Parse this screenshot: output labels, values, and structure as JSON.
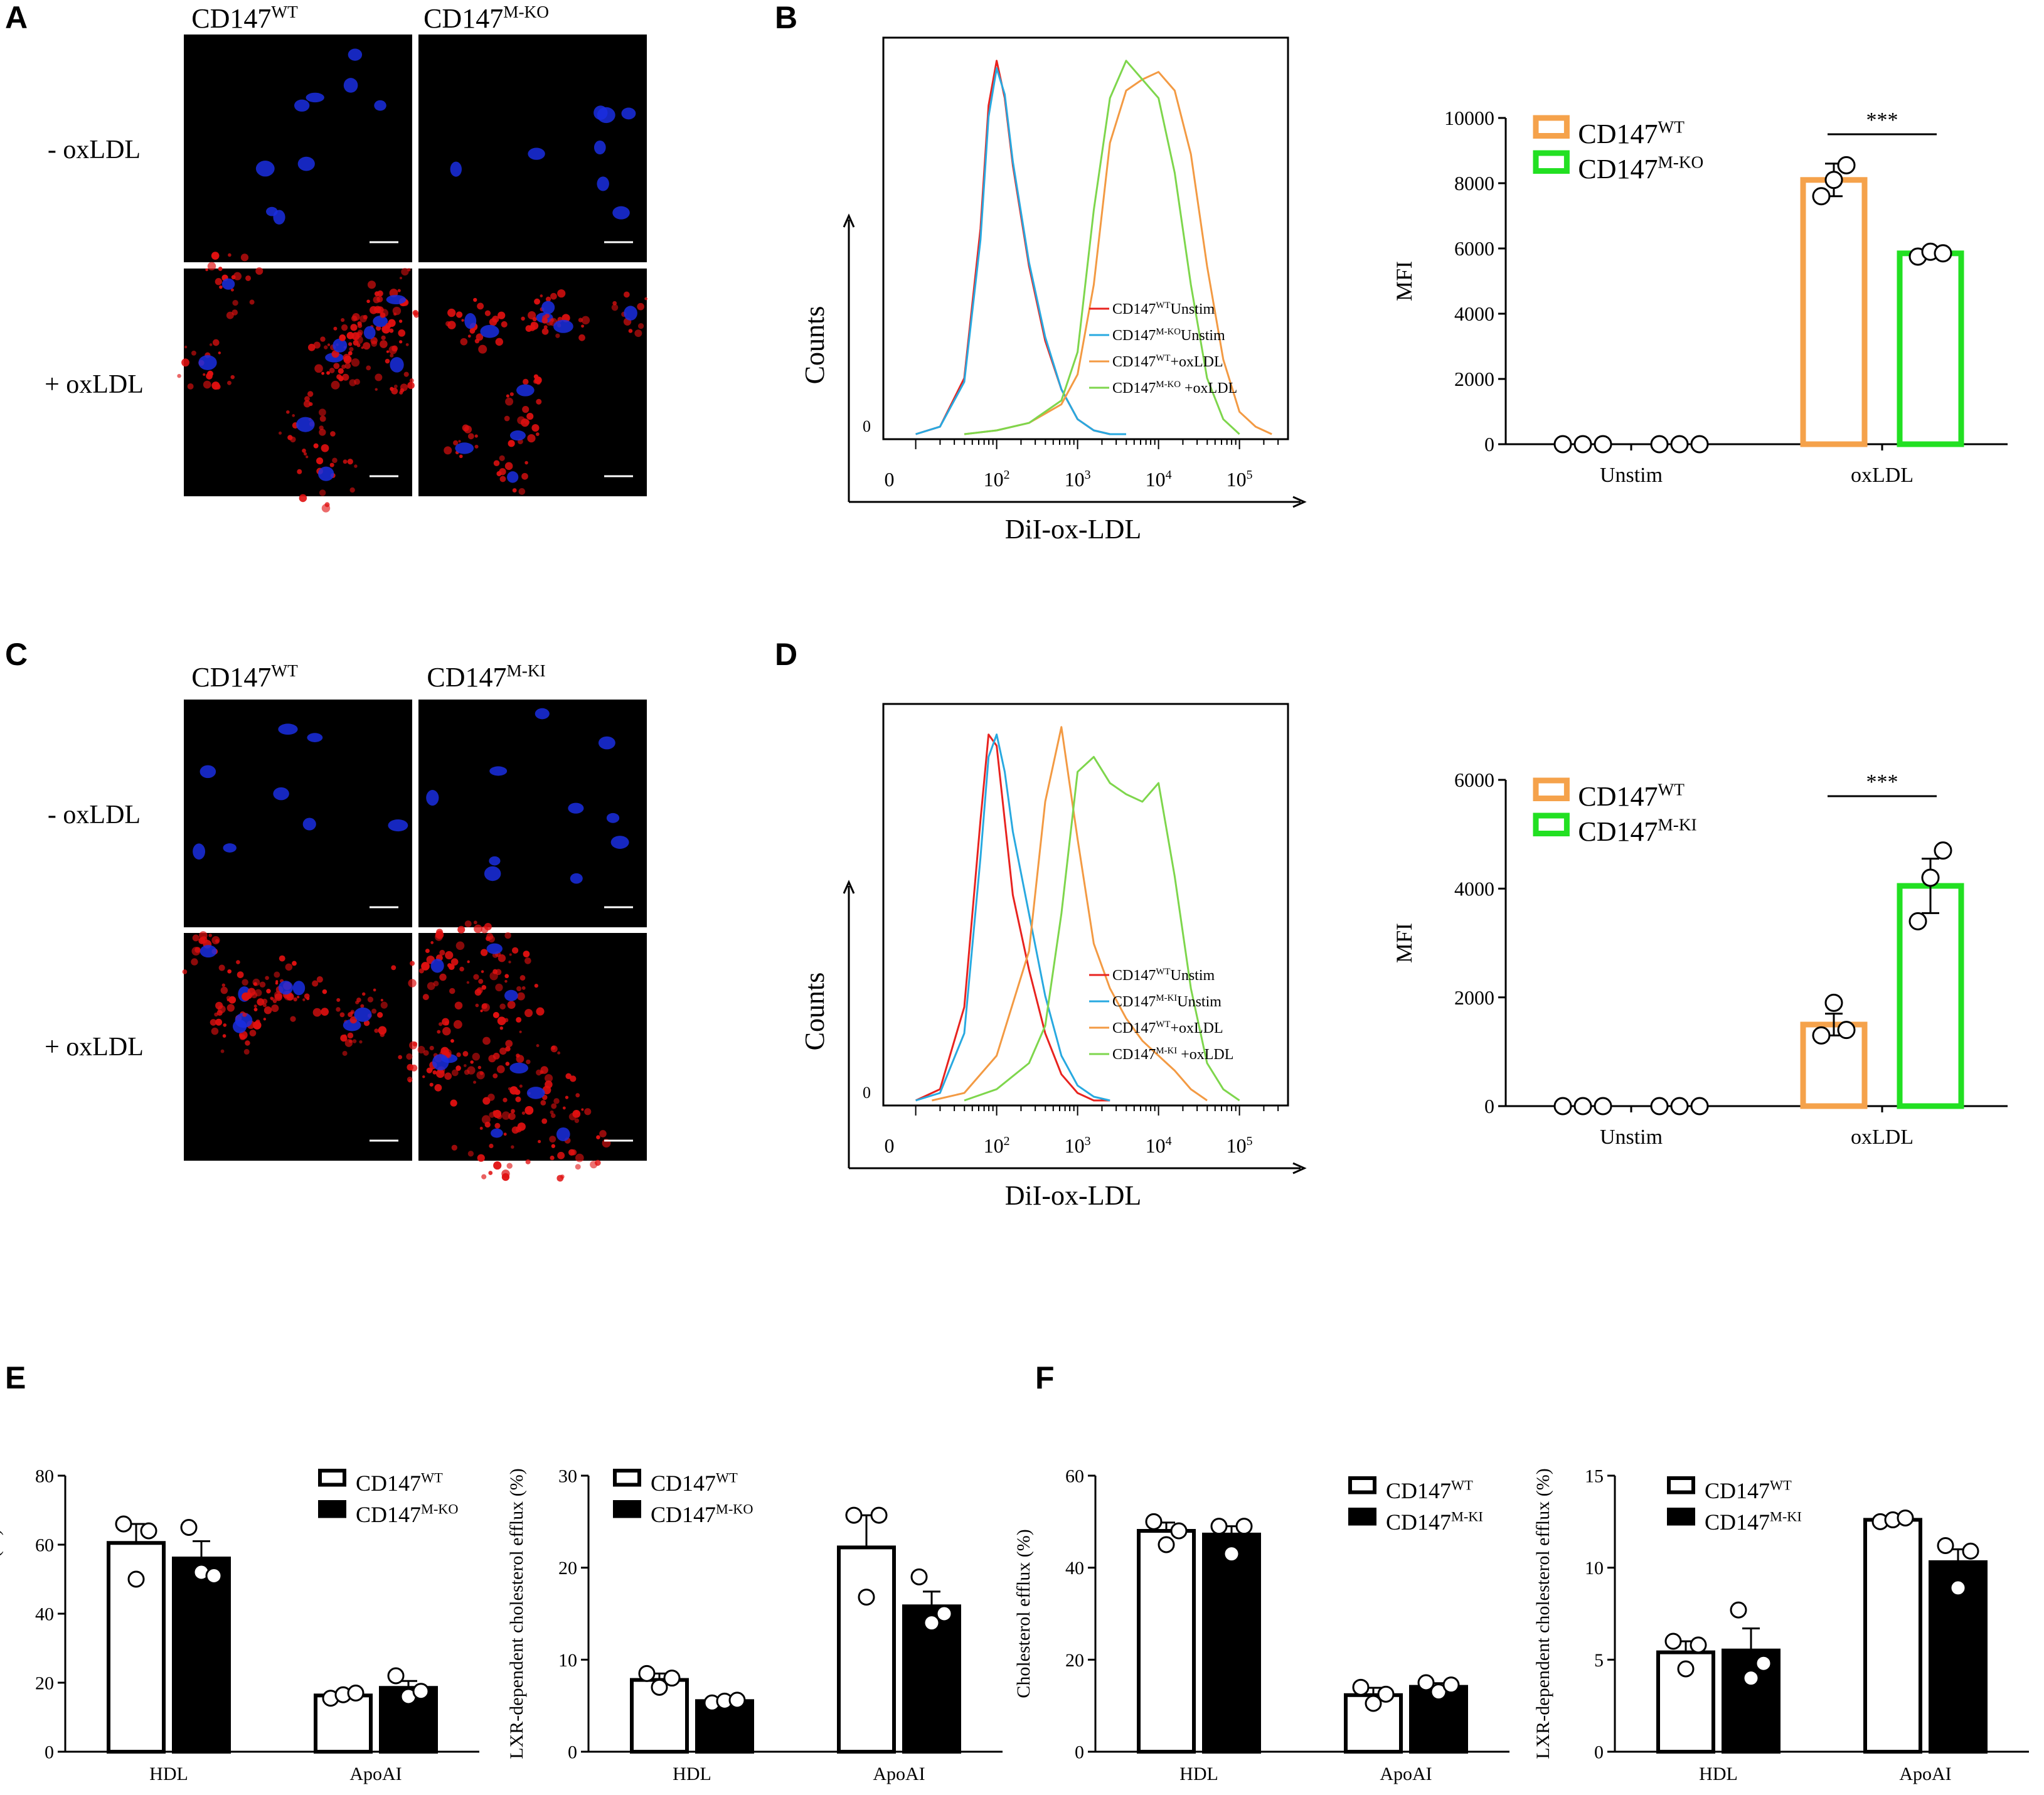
{
  "panels": {
    "A": "A",
    "B": "B",
    "C": "C",
    "D": "D",
    "E": "E",
    "F": "F"
  },
  "micro_top": {
    "col_labels": [
      {
        "base": "CD147",
        "sup": "WT"
      },
      {
        "base": "CD147",
        "sup": "M-KO"
      }
    ],
    "row_labels": [
      "- oxLDL",
      "+ oxLDL"
    ]
  },
  "micro_bottom": {
    "col_labels": [
      {
        "base": "CD147",
        "sup": "WT"
      },
      {
        "base": "CD147",
        "sup": "M-KI"
      }
    ],
    "row_labels": [
      "- oxLDL",
      "+ oxLDL"
    ]
  },
  "colors": {
    "wt_unstim": "#e8231f",
    "mut_unstim": "#28a9e0",
    "wt_oxldl": "#f39a43",
    "mut_oxldl": "#7ed64c",
    "bar_orange": "#f5a24b",
    "bar_green": "#22e022",
    "nucleus": "#1a2ee0",
    "lipid": "#e01010"
  },
  "chart_data": [
    {
      "id": "B-hist",
      "type": "line",
      "xlabel": "DiI-ox-LDL",
      "ylabel": "Counts",
      "y_zero": "0",
      "x_ticks": [
        {
          "base": "0",
          "sup": ""
        },
        {
          "base": "10",
          "sup": "2"
        },
        {
          "base": "10",
          "sup": "3"
        },
        {
          "base": "10",
          "sup": "4"
        },
        {
          "base": "10",
          "sup": "5"
        }
      ],
      "legend": [
        {
          "base": "CD147",
          "sup": "WT",
          "rest": "Unstim"
        },
        {
          "base": "CD147",
          "sup": "M-KO",
          "rest": "Unstim"
        },
        {
          "base": "CD147",
          "sup": "WT",
          "rest": "+oxLDL"
        },
        {
          "base": "CD147",
          "sup": "M-KO",
          "rest": " +oxLDL"
        }
      ],
      "series": [
        {
          "name": "CD147WTUnstim",
          "x": [
            1.0,
            1.3,
            1.6,
            1.8,
            1.9,
            2.0,
            2.1,
            2.2,
            2.4,
            2.6,
            2.8,
            3.0,
            3.2,
            3.4,
            3.6
          ],
          "y": [
            0,
            2,
            15,
            55,
            88,
            100,
            90,
            72,
            45,
            25,
            12,
            4,
            1,
            0,
            0
          ]
        },
        {
          "name": "CD147M-KOUnstim",
          "x": [
            1.0,
            1.3,
            1.6,
            1.8,
            1.9,
            2.0,
            2.1,
            2.2,
            2.4,
            2.6,
            2.8,
            3.0,
            3.2,
            3.4,
            3.6
          ],
          "y": [
            0,
            2,
            14,
            52,
            85,
            98,
            91,
            73,
            46,
            26,
            12,
            4,
            1,
            0,
            0
          ]
        },
        {
          "name": "CD147WT+oxLDL",
          "x": [
            1.6,
            2.0,
            2.4,
            2.8,
            3.0,
            3.2,
            3.4,
            3.6,
            3.8,
            4.0,
            4.2,
            4.4,
            4.6,
            4.8,
            5.0,
            5.2,
            5.4
          ],
          "y": [
            0,
            1,
            3,
            8,
            16,
            40,
            78,
            92,
            95,
            97,
            92,
            75,
            45,
            20,
            6,
            2,
            0
          ]
        },
        {
          "name": "CD147M-KO+oxLDL",
          "x": [
            1.6,
            2.0,
            2.4,
            2.8,
            3.0,
            3.2,
            3.4,
            3.6,
            3.8,
            4.0,
            4.2,
            4.4,
            4.6,
            4.8,
            5.0
          ],
          "y": [
            0,
            1,
            3,
            9,
            22,
            60,
            90,
            100,
            95,
            90,
            70,
            40,
            15,
            4,
            0
          ]
        }
      ]
    },
    {
      "id": "B-bar",
      "type": "bar",
      "ylabel": "MFI",
      "ylim": [
        0,
        10000
      ],
      "y_ticks": [
        "0",
        "2000",
        "4000",
        "6000",
        "8000",
        "10000"
      ],
      "categories": [
        "Unstim",
        "oxLDL"
      ],
      "legend": [
        {
          "base": "CD147",
          "sup": "WT"
        },
        {
          "base": "CD147",
          "sup": "M-KO"
        }
      ],
      "significance": "***",
      "series": [
        {
          "name": "CD147WT",
          "values": [
            0,
            8100
          ],
          "err": [
            0,
            500
          ],
          "points": [
            [
              0,
              0,
              0
            ],
            [
              7600,
              8100,
              8550
            ]
          ]
        },
        {
          "name": "CD147M-KO",
          "values": [
            0,
            5850
          ],
          "err": [
            0,
            80
          ],
          "points": [
            [
              0,
              0,
              0
            ],
            [
              5750,
              5900,
              5850
            ]
          ]
        }
      ]
    },
    {
      "id": "D-hist",
      "type": "line",
      "xlabel": "DiI-ox-LDL",
      "ylabel": "Counts",
      "y_zero": "0",
      "x_ticks": [
        {
          "base": "0",
          "sup": ""
        },
        {
          "base": "10",
          "sup": "2"
        },
        {
          "base": "10",
          "sup": "3"
        },
        {
          "base": "10",
          "sup": "4"
        },
        {
          "base": "10",
          "sup": "5"
        }
      ],
      "legend": [
        {
          "base": "CD147",
          "sup": "WT",
          "rest": "Unstim"
        },
        {
          "base": "CD147",
          "sup": "M-KI",
          "rest": "Unstim"
        },
        {
          "base": "CD147",
          "sup": "WT",
          "rest": "+oxLDL"
        },
        {
          "base": "CD147",
          "sup": "M-KI",
          "rest": " +oxLDL"
        }
      ],
      "series": [
        {
          "name": "CD147WTUnstim",
          "x": [
            1.0,
            1.3,
            1.6,
            1.8,
            1.9,
            2.0,
            2.1,
            2.2,
            2.4,
            2.6,
            2.8,
            3.0,
            3.2,
            3.4
          ],
          "y": [
            0,
            3,
            25,
            75,
            98,
            95,
            75,
            55,
            35,
            18,
            7,
            2,
            0,
            0
          ]
        },
        {
          "name": "CD147M-KIUnstim",
          "x": [
            1.0,
            1.3,
            1.6,
            1.8,
            1.9,
            2.0,
            2.1,
            2.2,
            2.4,
            2.6,
            2.8,
            3.0,
            3.2,
            3.4
          ],
          "y": [
            0,
            2,
            18,
            65,
            92,
            98,
            88,
            72,
            50,
            28,
            12,
            4,
            1,
            0
          ]
        },
        {
          "name": "CD147WT+oxLDL",
          "x": [
            1.2,
            1.6,
            2.0,
            2.4,
            2.6,
            2.8,
            3.0,
            3.2,
            3.4,
            3.6,
            3.8,
            4.0,
            4.2,
            4.4,
            4.6
          ],
          "y": [
            0,
            2,
            12,
            40,
            80,
            100,
            70,
            42,
            30,
            22,
            16,
            12,
            8,
            3,
            0
          ]
        },
        {
          "name": "CD147M-KI+oxLDL",
          "x": [
            1.6,
            2.0,
            2.4,
            2.6,
            2.8,
            3.0,
            3.2,
            3.4,
            3.6,
            3.8,
            4.0,
            4.2,
            4.4,
            4.6,
            4.8,
            5.0
          ],
          "y": [
            0,
            3,
            10,
            20,
            50,
            88,
            92,
            85,
            82,
            80,
            85,
            60,
            30,
            10,
            3,
            0
          ]
        }
      ]
    },
    {
      "id": "D-bar",
      "type": "bar",
      "ylabel": "MFI",
      "ylim": [
        0,
        6000
      ],
      "y_ticks": [
        "0",
        "2000",
        "4000",
        "6000"
      ],
      "categories": [
        "Unstim",
        "oxLDL"
      ],
      "legend": [
        {
          "base": "CD147",
          "sup": "WT"
        },
        {
          "base": "CD147",
          "sup": "M-KI"
        }
      ],
      "significance": "***",
      "series": [
        {
          "name": "CD147WT",
          "values": [
            0,
            1500
          ],
          "err": [
            0,
            200
          ],
          "points": [
            [
              0,
              0,
              0
            ],
            [
              1300,
              1900,
              1400
            ]
          ]
        },
        {
          "name": "CD147M-KI",
          "values": [
            0,
            4050
          ],
          "err": [
            0,
            500
          ],
          "points": [
            [
              0,
              0,
              0
            ],
            [
              3400,
              4200,
              4700
            ]
          ]
        }
      ]
    },
    {
      "id": "E-left",
      "type": "bar",
      "ylabel": "Cholesterol efflux (%)",
      "ylim": [
        0,
        80
      ],
      "y_ticks": [
        "0",
        "20",
        "40",
        "60",
        "80"
      ],
      "categories": [
        "HDL",
        "ApoAI"
      ],
      "legend": [
        {
          "base": "CD147",
          "sup": "WT"
        },
        {
          "base": "CD147",
          "sup": "M-KO"
        }
      ],
      "series": [
        {
          "name": "CD147WT",
          "values": [
            60.5,
            16.3
          ],
          "err": [
            5.5,
            0.8
          ],
          "points": [
            [
              66,
              50,
              64
            ],
            [
              15.5,
              16.5,
              17
            ]
          ]
        },
        {
          "name": "CD147M-KO",
          "values": [
            56,
            18.5
          ],
          "err": [
            5,
            2
          ],
          "points": [
            [
              65,
              52,
              51
            ],
            [
              22,
              16,
              17.5
            ]
          ]
        }
      ]
    },
    {
      "id": "E-right",
      "type": "bar",
      "ylabel": "LXR-dependent cholesterol efflux (%)",
      "ylim": [
        0,
        30
      ],
      "y_ticks": [
        "0",
        "10",
        "20",
        "30"
      ],
      "categories": [
        "HDL",
        "ApoAI"
      ],
      "legend": [
        {
          "base": "CD147",
          "sup": "WT"
        },
        {
          "base": "CD147",
          "sup": "M-KO"
        }
      ],
      "series": [
        {
          "name": "CD147WT",
          "values": [
            7.8,
            22.2
          ],
          "err": [
            0.7,
            3.5
          ],
          "points": [
            [
              8.5,
              7,
              8
            ],
            [
              25.7,
              16.8,
              25.7
            ]
          ]
        },
        {
          "name": "CD147M-KO",
          "values": [
            5.5,
            15.8
          ],
          "err": [
            0.2,
            1.6
          ],
          "points": [
            [
              5.3,
              5.5,
              5.6
            ],
            [
              19,
              14,
              15
            ]
          ]
        }
      ]
    },
    {
      "id": "F-left",
      "type": "bar",
      "ylabel": "Cholesterol efflux (%)",
      "ylim": [
        0,
        60
      ],
      "y_ticks": [
        "0",
        "20",
        "40",
        "60"
      ],
      "categories": [
        "HDL",
        "ApoAI"
      ],
      "legend": [
        {
          "base": "CD147",
          "sup": "WT"
        },
        {
          "base": "CD147",
          "sup": "M-KI"
        }
      ],
      "series": [
        {
          "name": "CD147WT",
          "values": [
            48,
            12.3
          ],
          "err": [
            1.8,
            1.6
          ],
          "points": [
            [
              50,
              45,
              48
            ],
            [
              14,
              10.5,
              12.5
            ]
          ]
        },
        {
          "name": "CD147M-KI",
          "values": [
            47.2,
            14.1
          ],
          "err": [
            1.8,
            0.8
          ],
          "points": [
            [
              49,
              43,
              49
            ],
            [
              15,
              13,
              14.5
            ]
          ]
        }
      ]
    },
    {
      "id": "F-right",
      "type": "bar",
      "ylabel": "LXR-dependent cholesterol efflux (%)",
      "ylim": [
        0,
        15
      ],
      "y_ticks": [
        "0",
        "5",
        "10",
        "15"
      ],
      "categories": [
        "HDL",
        "ApoAI"
      ],
      "legend": [
        {
          "base": "CD147",
          "sup": "WT"
        },
        {
          "base": "CD147",
          "sup": "M-KI"
        }
      ],
      "series": [
        {
          "name": "CD147WT",
          "values": [
            5.4,
            12.6
          ],
          "err": [
            0.6,
            0.1
          ],
          "points": [
            [
              6,
              4.5,
              5.8
            ],
            [
              12.5,
              12.6,
              12.7
            ]
          ]
        },
        {
          "name": "CD147M-KI",
          "values": [
            5.5,
            10.3
          ],
          "err": [
            1.2,
            0.7
          ],
          "points": [
            [
              7.7,
              4,
              4.8
            ],
            [
              11.2,
              8.9,
              10.9
            ]
          ]
        }
      ]
    }
  ]
}
